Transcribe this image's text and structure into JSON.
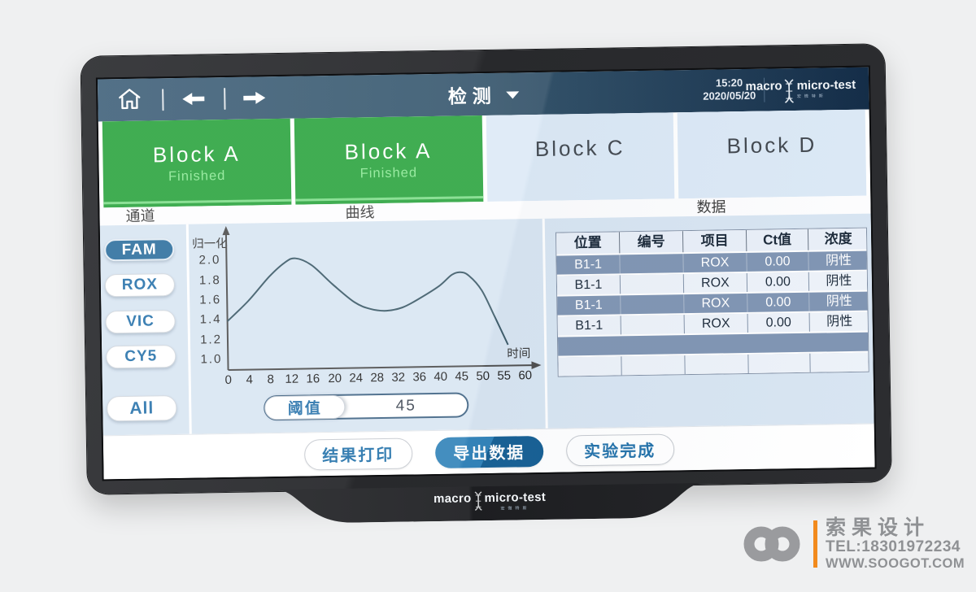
{
  "topbar": {
    "title": "检测",
    "time": "15:20",
    "date": "2020/05/20",
    "brand": {
      "word_left": "macro",
      "word_right": "micro-test",
      "brand_sub": "宏微特斯"
    }
  },
  "tabs": [
    {
      "label": "Block A",
      "status": "Finished"
    },
    {
      "label": "Block A",
      "status": "Finished"
    },
    {
      "label": "Block C",
      "status": ""
    },
    {
      "label": "Block D",
      "status": ""
    }
  ],
  "sections": {
    "channel": "通道",
    "curve": "曲线",
    "data": "数据"
  },
  "channels": [
    {
      "label": "FAM",
      "selected": true
    },
    {
      "label": "ROX",
      "selected": false
    },
    {
      "label": "VIC",
      "selected": false
    },
    {
      "label": "CY5",
      "selected": false
    },
    {
      "label": "All",
      "selected": false
    }
  ],
  "threshold": {
    "label": "阈值",
    "value": "45"
  },
  "chart_data": {
    "type": "line",
    "title": "",
    "ylabel": "归一化",
    "xlabel": "时间",
    "x_ticklabels": [
      "0",
      "4",
      "8",
      "12",
      "16",
      "20",
      "24",
      "28",
      "32",
      "36",
      "40",
      "45",
      "50",
      "55",
      "60"
    ],
    "y_ticklabels": [
      "2.0",
      "1.8",
      "1.6",
      "1.4",
      "1.2",
      "1.0"
    ],
    "ylim": [
      1.0,
      2.0
    ],
    "grid": false,
    "legend": "none",
    "series": [
      {
        "name": "FAM",
        "points": [
          [
            0,
            1.38
          ],
          [
            4,
            1.58
          ],
          [
            8,
            1.82
          ],
          [
            11,
            1.96
          ],
          [
            13,
            2.0
          ],
          [
            16,
            1.93
          ],
          [
            20,
            1.73
          ],
          [
            24,
            1.55
          ],
          [
            27,
            1.48
          ],
          [
            30,
            1.46
          ],
          [
            33,
            1.49
          ],
          [
            36,
            1.57
          ],
          [
            40,
            1.7
          ],
          [
            43,
            1.81
          ],
          [
            45,
            1.835
          ],
          [
            47,
            1.8
          ],
          [
            50,
            1.65
          ],
          [
            53,
            1.38
          ],
          [
            56,
            1.1
          ]
        ]
      }
    ]
  },
  "table": {
    "headers": [
      "位置",
      "编号",
      "项目",
      "Ct值",
      "浓度"
    ],
    "rows": [
      [
        "B1-1",
        "",
        "ROX",
        "0.00",
        "阴性"
      ],
      [
        "B1-1",
        "",
        "ROX",
        "0.00",
        "阴性"
      ],
      [
        "B1-1",
        "",
        "ROX",
        "0.00",
        "阴性"
      ],
      [
        "B1-1",
        "",
        "ROX",
        "0.00",
        "阴性"
      ],
      [
        "",
        "",
        "",
        "",
        ""
      ],
      [
        "",
        "",
        "",
        "",
        ""
      ]
    ]
  },
  "footer_buttons": [
    {
      "label": "结果打印",
      "primary": false
    },
    {
      "label": "导出数据",
      "primary": true
    },
    {
      "label": "实验完成",
      "primary": false
    }
  ],
  "device": {
    "bottom_brand_left": "macro",
    "bottom_brand_right": "micro-test",
    "bottom_brand_sub": "宏微特斯"
  },
  "watermark": {
    "company": "索果设计",
    "tel": "TEL:18301972234",
    "site": "WWW.SOOGOT.COM",
    "accent_color": "#f28a1d"
  },
  "colors": {
    "topbar_left": "#40617a",
    "topbar_right": "#132c47",
    "tab_finished_green": "#2ba43e",
    "tab_idle_blue": "#dce9f6",
    "main_bg": "#d8e5f2",
    "selected_blue": "#2e6f9e",
    "table_row_dark": "#8095b3",
    "primary_button": "#2f81b8"
  }
}
